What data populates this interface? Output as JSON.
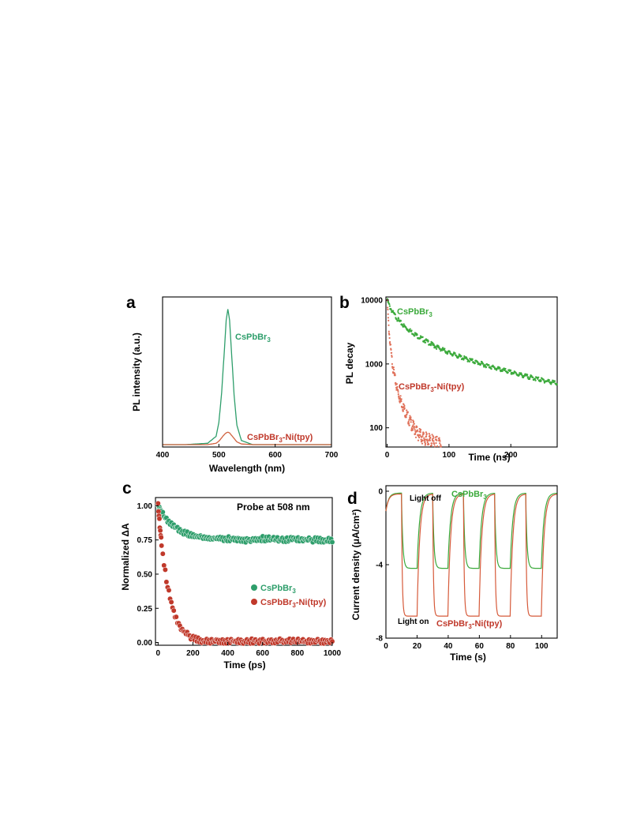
{
  "chart_data": [
    {
      "panel": "a",
      "type": "line",
      "xlabel": "Wavelength (nm)",
      "ylabel": "PL intensity (a.u.)",
      "xlim": [
        400,
        700
      ],
      "xticks": [
        400,
        500,
        600,
        700
      ],
      "x": [
        400,
        440,
        480,
        495,
        500,
        505,
        510,
        513,
        516,
        519,
        522,
        527,
        532,
        540,
        560,
        600,
        700
      ],
      "series": [
        {
          "name": "CsPbBr3",
          "color": "#2e9e6b",
          "values": [
            0.0,
            0.0,
            0.01,
            0.06,
            0.16,
            0.38,
            0.7,
            0.9,
            0.98,
            0.9,
            0.7,
            0.36,
            0.14,
            0.03,
            0.0,
            0.0,
            0.0
          ]
        },
        {
          "name": "CsPbBr3-Ni(tpy)",
          "color": "#d0623f",
          "values": [
            0.0,
            0.0,
            0.0,
            0.01,
            0.025,
            0.05,
            0.075,
            0.085,
            0.09,
            0.085,
            0.07,
            0.045,
            0.02,
            0.005,
            0.0,
            0.0,
            0.0
          ]
        }
      ]
    },
    {
      "panel": "b",
      "type": "scatter",
      "xlabel": "Time (ns)",
      "ylabel": "PL decay",
      "xlim": [
        -2,
        275
      ],
      "ylim": [
        50,
        10000
      ],
      "yscale": "log",
      "xticks": [
        0,
        100,
        200
      ],
      "yticks": [
        100,
        1000,
        10000
      ],
      "series": [
        {
          "name": "CsPbBr3",
          "color": "#3caa3c",
          "x": [
            0,
            5,
            10,
            20,
            30,
            50,
            75,
            100,
            125,
            150,
            175,
            200,
            225,
            250,
            275
          ],
          "values": [
            10000,
            7600,
            6200,
            4600,
            3700,
            2700,
            1950,
            1500,
            1220,
            1020,
            860,
            740,
            640,
            560,
            500
          ]
        },
        {
          "name": "CsPbBr3-Ni(tpy)",
          "color": "#e0715a",
          "x": [
            0,
            2,
            4,
            6,
            8,
            10,
            15,
            20,
            30,
            40,
            50,
            60,
            70,
            80,
            88
          ],
          "values": [
            10000,
            4500,
            2500,
            1600,
            1100,
            800,
            450,
            300,
            170,
            110,
            80,
            68,
            60,
            56,
            55
          ]
        }
      ],
      "legend_labels": [
        "CsPbBr3",
        "CsPbBr3-Ni(tpy)"
      ]
    },
    {
      "panel": "c",
      "type": "scatter",
      "xlabel": "Time (ps)",
      "ylabel": "Normalized ΔA",
      "title": "Probe at 508 nm",
      "xlim": [
        -15,
        1000
      ],
      "ylim": [
        -0.02,
        1.06
      ],
      "xticks": [
        0,
        200,
        400,
        600,
        800,
        1000
      ],
      "yticks": [
        0.0,
        0.25,
        0.5,
        0.75,
        1.0
      ],
      "series": [
        {
          "name": "CsPbBr3",
          "color": "#2e9e6b",
          "x": [
            0,
            10,
            25,
            50,
            75,
            100,
            150,
            200,
            300,
            400,
            500,
            600,
            700,
            800,
            900,
            1000
          ],
          "values": [
            1.0,
            0.98,
            0.94,
            0.9,
            0.86,
            0.84,
            0.8,
            0.78,
            0.76,
            0.76,
            0.75,
            0.76,
            0.75,
            0.76,
            0.75,
            0.75
          ]
        },
        {
          "name": "CsPbBr3-Ni(tpy)",
          "color": "#c0392b",
          "x": [
            0,
            10,
            25,
            50,
            75,
            100,
            125,
            150,
            200,
            250,
            300,
            400,
            500,
            600,
            700,
            800,
            900,
            1000
          ],
          "values": [
            1.0,
            0.85,
            0.66,
            0.44,
            0.29,
            0.19,
            0.12,
            0.08,
            0.03,
            0.015,
            0.01,
            0.01,
            0.01,
            0.01,
            0.01,
            0.01,
            0.01,
            0.01
          ]
        }
      ],
      "legend_labels": [
        "CsPbBr3",
        "CsPbBr3-Ni(tpy)"
      ],
      "legend": "center-right"
    },
    {
      "panel": "d",
      "type": "line",
      "xlabel": "Time (s)",
      "ylabel": "Current density (μA/cm²)",
      "xlim": [
        0,
        110
      ],
      "ylim": [
        -8,
        0.3
      ],
      "xticks": [
        0,
        20,
        40,
        60,
        80,
        100
      ],
      "yticks": [
        -8,
        -4,
        0
      ],
      "light_on_intervals": [
        [
          10,
          20
        ],
        [
          30,
          40
        ],
        [
          50,
          60
        ],
        [
          70,
          80
        ],
        [
          90,
          100
        ]
      ],
      "series": [
        {
          "name": "CsPbBr3",
          "color": "#3caa3c",
          "on_level": -4.2,
          "off_level": -0.1
        },
        {
          "name": "CsPbBr3-Ni(tpy)",
          "color": "#d65a3a",
          "on_level": -6.8,
          "off_level": -0.15
        }
      ],
      "annotations": [
        "Light off",
        "Light on"
      ],
      "legend_labels": [
        "CsPbBr3",
        "CsPbBr3-Ni(tpy)"
      ]
    }
  ]
}
